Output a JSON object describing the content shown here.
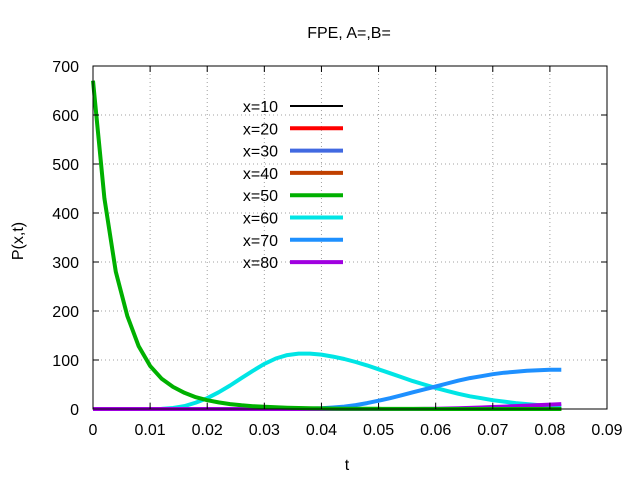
{
  "chart_data": {
    "type": "line",
    "title": "FPE, A=,B=",
    "xlabel": "t",
    "ylabel": "P(x,t)",
    "xlim": [
      0,
      0.09
    ],
    "ylim": [
      0,
      700
    ],
    "xticks": [
      0,
      0.01,
      0.02,
      0.03,
      0.04,
      0.05,
      0.06,
      0.07,
      0.08,
      0.09
    ],
    "xtick_labels": [
      "0",
      "0.01",
      "0.02",
      "0.03",
      "0.04",
      "0.05",
      "0.06",
      "0.07",
      "0.08",
      "0.09"
    ],
    "yticks": [
      0,
      100,
      200,
      300,
      400,
      500,
      600,
      700
    ],
    "ytick_labels": [
      "0",
      "100",
      "200",
      "300",
      "400",
      "500",
      "600",
      "700"
    ],
    "grid": true,
    "legend_position": "top-center",
    "x": [
      0,
      0.002,
      0.004,
      0.006,
      0.008,
      0.01,
      0.012,
      0.014,
      0.016,
      0.018,
      0.02,
      0.022,
      0.024,
      0.026,
      0.028,
      0.03,
      0.032,
      0.034,
      0.036,
      0.038,
      0.04,
      0.042,
      0.044,
      0.046,
      0.048,
      0.05,
      0.052,
      0.054,
      0.056,
      0.058,
      0.06,
      0.062,
      0.064,
      0.066,
      0.068,
      0.07,
      0.072,
      0.074,
      0.076,
      0.078,
      0.08,
      0.082
    ],
    "series": [
      {
        "name": "x=10",
        "color": "#000000",
        "width": 2,
        "values": [
          0,
          0,
          0,
          0,
          0,
          0,
          0,
          0,
          0,
          0,
          0,
          0,
          0,
          0,
          0,
          0,
          0,
          0,
          0,
          0,
          0,
          0,
          0,
          0,
          0,
          0,
          0,
          0,
          0,
          0,
          0,
          0,
          0,
          0,
          0,
          0,
          0,
          0,
          0,
          0,
          0,
          0
        ]
      },
      {
        "name": "x=20",
        "color": "#ff0000",
        "width": 4,
        "values": [
          0,
          0,
          0,
          0,
          0,
          0,
          0,
          0,
          0,
          0,
          0,
          0,
          0,
          0,
          0,
          0,
          0,
          0,
          0,
          0,
          0,
          0,
          0,
          0,
          0,
          0,
          0,
          0,
          0,
          0,
          0,
          0,
          0,
          0,
          0,
          0,
          0,
          0,
          0,
          0,
          0,
          0
        ]
      },
      {
        "name": "x=30",
        "color": "#4169e1",
        "width": 4,
        "values": [
          0,
          0,
          0,
          0,
          0,
          0,
          0,
          0,
          0,
          0,
          0,
          0,
          0,
          0,
          0,
          0,
          0,
          0,
          0,
          0,
          0,
          0,
          0,
          0,
          0,
          0,
          0,
          0,
          0,
          0,
          0,
          0,
          0,
          0,
          0,
          0,
          0,
          0,
          0,
          0,
          0,
          0
        ]
      },
      {
        "name": "x=40",
        "color": "#c04000",
        "width": 4,
        "values": [
          0,
          0,
          0,
          0,
          0,
          0,
          0,
          0,
          0,
          0,
          0,
          0,
          0,
          0,
          0,
          0,
          0,
          0,
          0,
          0,
          0,
          0,
          0,
          0,
          0,
          0,
          0,
          0,
          0,
          0,
          0,
          0,
          0,
          0,
          0,
          0,
          0,
          0,
          0,
          0,
          0,
          0
        ]
      },
      {
        "name": "x=60",
        "color": "#00e5e5",
        "width": 4,
        "values": [
          0,
          0,
          0,
          0,
          0,
          0,
          0.3,
          2,
          6,
          13,
          22,
          34,
          48,
          63,
          78,
          92,
          103,
          110,
          113,
          113,
          111,
          107,
          102,
          96,
          89,
          81,
          73,
          65,
          57,
          50,
          43,
          37,
          31,
          26,
          22,
          18,
          15,
          12,
          10,
          8,
          7,
          6
        ]
      },
      {
        "name": "x=70",
        "color": "#1e90ff",
        "width": 4,
        "values": [
          0,
          0,
          0,
          0,
          0,
          0,
          0,
          0,
          0,
          0,
          0,
          0,
          0,
          0,
          0,
          0,
          0,
          0,
          0.3,
          0.8,
          1.6,
          3,
          5,
          8,
          12,
          17,
          22,
          28,
          34,
          40,
          46,
          52,
          58,
          63,
          67,
          71,
          74,
          76,
          78,
          79,
          80,
          80
        ]
      },
      {
        "name": "x=80",
        "color": "#a000e0",
        "width": 4,
        "values": [
          0,
          0,
          0,
          0,
          0,
          0,
          0,
          0,
          0,
          0,
          0,
          0,
          0,
          0,
          0,
          0,
          0,
          0,
          0,
          0,
          0,
          0,
          0,
          0,
          0,
          0,
          0,
          0,
          0,
          0.3,
          0.6,
          1,
          1.5,
          2.2,
          3,
          4,
          5,
          6,
          7,
          8,
          9,
          10
        ]
      },
      {
        "name": "x=50",
        "color": "#00b000",
        "width": 4,
        "values": [
          670,
          430,
          280,
          190,
          128,
          88,
          62,
          45,
          33,
          24,
          18,
          13.5,
          10,
          7.5,
          5.7,
          4.4,
          3.4,
          2.6,
          2,
          1.5,
          1.2,
          0.9,
          0.7,
          0.55,
          0.42,
          0.33,
          0.25,
          0.2,
          0.15,
          0.12,
          0.09,
          0.07,
          0.05,
          0.04,
          0.03,
          0.02,
          0.02,
          0.01,
          0.01,
          0.01,
          0,
          0
        ]
      }
    ],
    "legend_order": [
      "x=10",
      "x=20",
      "x=30",
      "x=40",
      "x=50",
      "x=60",
      "x=70",
      "x=80"
    ]
  }
}
